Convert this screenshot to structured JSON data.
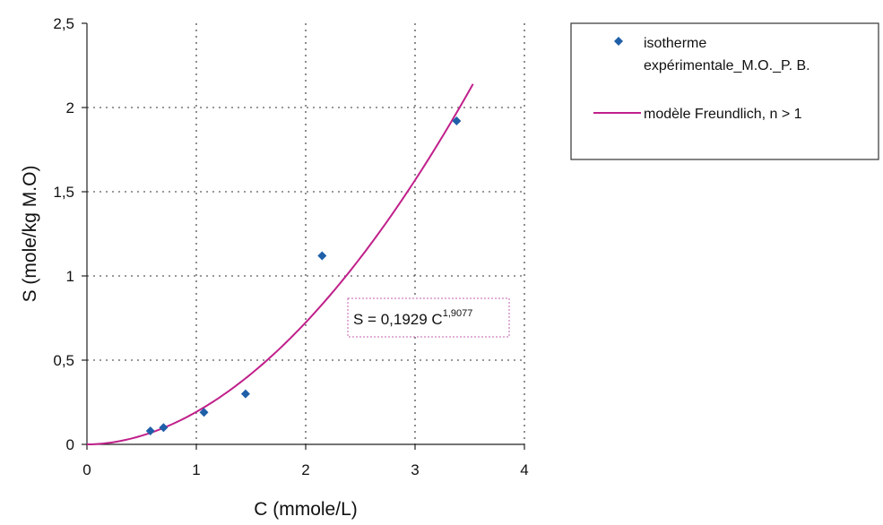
{
  "chart_data": {
    "type": "scatter",
    "xlabel": "C (mmole/L)",
    "ylabel": "S (mole/kg M.O)",
    "xlim": [
      0,
      4
    ],
    "ylim": [
      0,
      2.5
    ],
    "x_ticks": [
      "0",
      "1",
      "2",
      "3",
      "4"
    ],
    "y_ticks": [
      "0",
      "0,5",
      "1",
      "1,5",
      "2",
      "2,5"
    ],
    "grid": "dotted",
    "legend_position": "top-right",
    "series": [
      {
        "name": "isotherme expérimentale_M.O._P. B.",
        "kind": "points",
        "color": "#1f5fa8",
        "x": [
          0.58,
          0.7,
          1.07,
          1.45,
          2.15,
          3.38
        ],
        "y": [
          0.08,
          0.1,
          0.19,
          0.3,
          1.12,
          1.92
        ]
      },
      {
        "name": "modèle Freundlich, n > 1",
        "kind": "line",
        "color": "#c0208a",
        "model": {
          "a": 0.1929,
          "b": 1.9077,
          "x_start": 0,
          "x_end": 3.53
        }
      }
    ],
    "legend": {
      "line1": "isotherme",
      "line2": "expérimentale_M.O._P. B.",
      "line3": "modèle Freundlich, n > 1"
    },
    "equation": {
      "prefix": "S = 0,1929 C",
      "exponent": "1,9077"
    }
  }
}
